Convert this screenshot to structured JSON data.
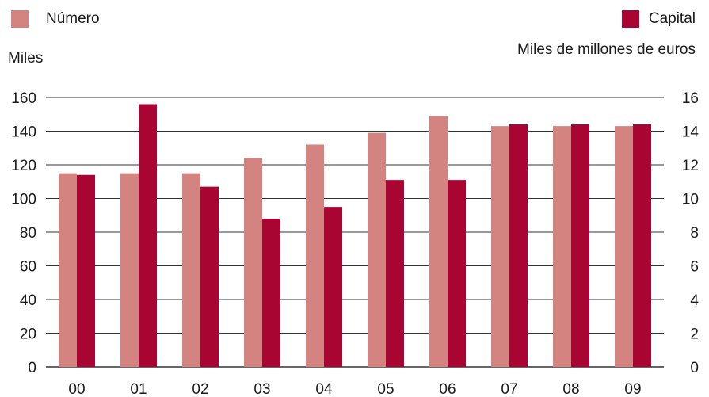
{
  "colors": {
    "numero": "#d38480",
    "capital": "#a90533",
    "grid": "#333333"
  },
  "chart_data": {
    "type": "bar",
    "categories": [
      "00",
      "01",
      "02",
      "03",
      "04",
      "05",
      "06",
      "07",
      "08",
      "09"
    ],
    "series": [
      {
        "name": "Número",
        "axis": "left",
        "values": [
          115,
          115,
          115,
          124,
          132,
          139,
          149,
          143,
          143,
          143
        ]
      },
      {
        "name": "Capital",
        "axis": "right",
        "values": [
          11.4,
          15.6,
          10.7,
          8.8,
          9.5,
          11.1,
          11.1,
          14.4,
          14.4,
          14.4
        ]
      }
    ],
    "y_left": {
      "label": "Miles",
      "lim": [
        0,
        160
      ],
      "ticks": [
        0,
        20,
        40,
        60,
        80,
        100,
        120,
        140,
        160
      ]
    },
    "y_right": {
      "label": "Miles de millones de euros",
      "lim": [
        0,
        16
      ],
      "ticks": [
        0,
        2,
        4,
        6,
        8,
        10,
        12,
        14,
        16
      ]
    },
    "grid": true,
    "legend": "top"
  }
}
